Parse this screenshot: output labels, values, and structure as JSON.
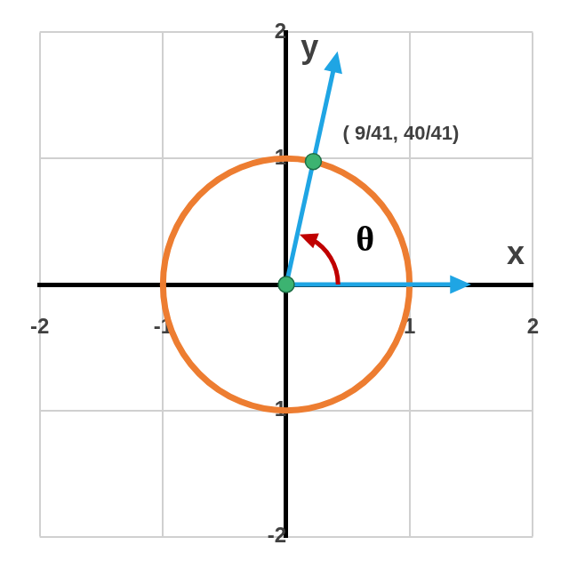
{
  "chart_data": {
    "type": "scatter",
    "xlim": [
      -2,
      2
    ],
    "ylim": [
      -2,
      2
    ],
    "xticks": [
      -2,
      -1,
      1,
      2
    ],
    "yticks": [
      -2,
      -1,
      1,
      2
    ],
    "grid": true,
    "circle": {
      "center": [
        0,
        0
      ],
      "radius": 1,
      "color": "#ed7d31"
    },
    "vectors": [
      {
        "from": [
          0,
          0
        ],
        "to": [
          1.5,
          0
        ],
        "label": "x",
        "label_at": [
          1.86,
          0.23
        ],
        "color": "#1fa5e4"
      },
      {
        "from": [
          0,
          0
        ],
        "to": [
          0.416,
          1.85
        ],
        "label": "y",
        "label_at": [
          0.19,
          1.87
        ],
        "color": "#1fa5e4"
      }
    ],
    "points": {
      "color": "#3cb371",
      "marks": [
        {
          "x": 0,
          "y": 0
        },
        {
          "x": 0.2195,
          "y": 0.9756,
          "label": "( 9/41, 40/41)",
          "label_at": [
            0.93,
            1.19
          ]
        }
      ]
    },
    "angle": {
      "label": "θ",
      "radius": 0.42,
      "label_at": [
        0.64,
        0.34
      ],
      "color": "#c00000"
    }
  }
}
